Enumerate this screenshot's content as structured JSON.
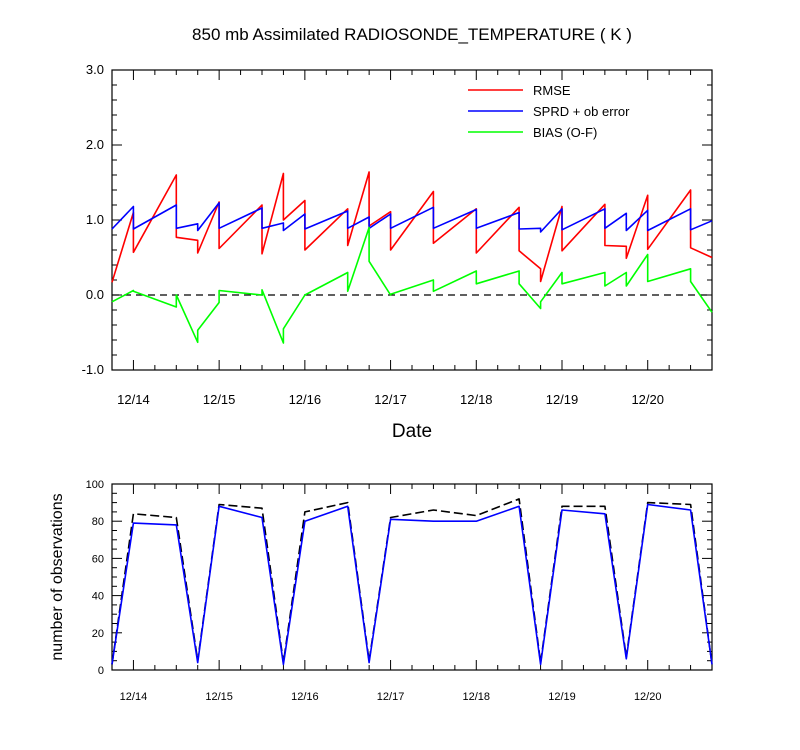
{
  "chart_data": [
    {
      "type": "line",
      "title": "850 mb Assimilated RADIOSONDE_TEMPERATURE ( K )",
      "xlabel": "Date",
      "ylabel": "",
      "x_ticks": [
        {
          "day": 14,
          "label": "12/14"
        },
        {
          "day": 15,
          "label": "12/15"
        },
        {
          "day": 16,
          "label": "12/16"
        },
        {
          "day": 17,
          "label": "12/17"
        },
        {
          "day": 18,
          "label": "12/18"
        },
        {
          "day": 19,
          "label": "12/19"
        },
        {
          "day": 20,
          "label": "12/20"
        }
      ],
      "xlim": [
        13.75,
        20.75
      ],
      "ylim": [
        -1.0,
        3.0
      ],
      "y_ticks": [
        {
          "value": -1.0,
          "label": "-1.0"
        },
        {
          "value": 0.0,
          "label": "0.0"
        },
        {
          "value": 1.0,
          "label": "1.0"
        },
        {
          "value": 2.0,
          "label": "2.0"
        },
        {
          "value": 3.0,
          "label": "3.0"
        }
      ],
      "zero_line": 0.0,
      "legend_position": "top-right",
      "series": [
        {
          "name": "RMSE",
          "color": "#ff0000",
          "x": [
            13.75,
            14.0,
            14.0,
            14.5,
            14.5,
            14.75,
            14.75,
            15.0,
            15.0,
            15.5,
            15.5,
            15.75,
            15.75,
            16.0,
            16.0,
            16.5,
            16.5,
            16.75,
            16.75,
            17.0,
            17.0,
            17.5,
            17.5,
            18.0,
            18.0,
            18.5,
            18.5,
            18.75,
            18.75,
            19.0,
            19.0,
            19.5,
            19.5,
            19.75,
            19.75,
            20.0,
            20.0,
            20.5,
            20.5,
            20.75
          ],
          "y": [
            0.17,
            1.1,
            0.57,
            1.6,
            0.77,
            0.73,
            0.56,
            1.24,
            0.62,
            1.2,
            0.55,
            1.62,
            1.0,
            1.26,
            0.6,
            1.15,
            0.66,
            1.64,
            0.92,
            1.11,
            0.6,
            1.38,
            0.69,
            1.15,
            0.56,
            1.17,
            0.59,
            0.35,
            0.18,
            1.18,
            0.59,
            1.21,
            0.66,
            0.65,
            0.49,
            1.33,
            0.61,
            1.4,
            0.63,
            0.5
          ]
        },
        {
          "name": "SPRD + ob error",
          "color": "#0000ff",
          "x": [
            13.75,
            14.0,
            14.0,
            14.5,
            14.5,
            14.75,
            14.75,
            15.0,
            15.0,
            15.5,
            15.5,
            15.75,
            15.75,
            16.0,
            16.0,
            16.5,
            16.5,
            16.75,
            16.75,
            17.0,
            17.0,
            17.5,
            17.5,
            18.0,
            18.0,
            18.5,
            18.5,
            18.75,
            18.75,
            19.0,
            19.0,
            19.5,
            19.5,
            19.75,
            19.75,
            20.0,
            20.0,
            20.5,
            20.5,
            20.75
          ],
          "y": [
            0.88,
            1.18,
            0.88,
            1.2,
            0.89,
            0.95,
            0.86,
            1.23,
            0.89,
            1.16,
            0.89,
            0.96,
            0.86,
            1.08,
            0.88,
            1.12,
            0.89,
            1.04,
            0.89,
            1.08,
            0.89,
            1.17,
            0.89,
            1.14,
            0.89,
            1.1,
            0.88,
            0.89,
            0.84,
            1.15,
            0.87,
            1.15,
            0.89,
            1.09,
            0.86,
            1.13,
            0.86,
            1.15,
            0.87,
            0.99
          ]
        },
        {
          "name": "BIAS (O-F)",
          "color": "#00ff00",
          "x": [
            13.75,
            14.0,
            14.0,
            14.5,
            14.5,
            14.75,
            14.75,
            15.0,
            15.0,
            15.5,
            15.5,
            15.75,
            15.75,
            16.0,
            16.0,
            16.5,
            16.5,
            16.75,
            16.75,
            17.0,
            17.0,
            17.5,
            17.5,
            18.0,
            18.0,
            18.5,
            18.5,
            18.75,
            18.75,
            19.0,
            19.0,
            19.5,
            19.5,
            19.75,
            19.75,
            20.0,
            20.0,
            20.5,
            20.5,
            20.75
          ],
          "y": [
            -0.09,
            0.06,
            0.05,
            -0.16,
            0.0,
            -0.63,
            -0.47,
            -0.1,
            0.06,
            0.0,
            0.07,
            -0.64,
            -0.45,
            0.0,
            0.0,
            0.3,
            0.05,
            0.9,
            0.45,
            0.0,
            0.01,
            0.2,
            0.05,
            0.32,
            0.15,
            0.32,
            0.15,
            -0.18,
            -0.09,
            0.3,
            0.15,
            0.3,
            0.12,
            0.3,
            0.12,
            0.54,
            0.18,
            0.35,
            0.18,
            -0.23
          ]
        }
      ]
    },
    {
      "type": "line",
      "title": "",
      "xlabel": "",
      "ylabel": "number of observations",
      "x_ticks": [
        {
          "day": 14,
          "label": "12/14"
        },
        {
          "day": 15,
          "label": "12/15"
        },
        {
          "day": 16,
          "label": "12/16"
        },
        {
          "day": 17,
          "label": "12/17"
        },
        {
          "day": 18,
          "label": "12/18"
        },
        {
          "day": 19,
          "label": "12/19"
        },
        {
          "day": 20,
          "label": "12/20"
        }
      ],
      "xlim": [
        13.75,
        20.75
      ],
      "ylim": [
        0,
        100
      ],
      "y_ticks": [
        {
          "value": 0,
          "label": "0"
        },
        {
          "value": 20,
          "label": "20"
        },
        {
          "value": 40,
          "label": "40"
        },
        {
          "value": 60,
          "label": "60"
        },
        {
          "value": 80,
          "label": "80"
        },
        {
          "value": 100,
          "label": "100"
        }
      ],
      "series": [
        {
          "name": "",
          "color": "#000000",
          "dashed": true,
          "x": [
            13.75,
            14.0,
            14.5,
            14.75,
            15.0,
            15.5,
            15.75,
            16.0,
            16.5,
            16.75,
            17.0,
            17.5,
            18.0,
            18.5,
            18.75,
            19.0,
            19.5,
            19.75,
            20.0,
            20.5,
            20.75
          ],
          "y": [
            3,
            84,
            82,
            5,
            89,
            87,
            4,
            85,
            90,
            5,
            82,
            86,
            83,
            92,
            4,
            88,
            88,
            7,
            90,
            89,
            3
          ]
        },
        {
          "name": "",
          "color": "#0000ff",
          "dashed": false,
          "x": [
            13.75,
            14.0,
            14.5,
            14.75,
            15.0,
            15.5,
            15.75,
            16.0,
            16.5,
            16.75,
            17.0,
            17.5,
            18.0,
            18.5,
            18.75,
            19.0,
            19.5,
            19.75,
            20.0,
            20.5,
            20.75
          ],
          "y": [
            3,
            79,
            78,
            4,
            88,
            82,
            3,
            80,
            88,
            4,
            81,
            80,
            80,
            88,
            3,
            86,
            84,
            6,
            89,
            86,
            3
          ]
        }
      ]
    }
  ]
}
